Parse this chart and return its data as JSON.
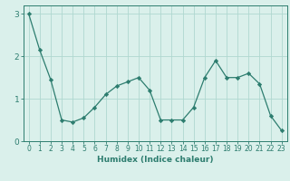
{
  "x": [
    0,
    1,
    2,
    3,
    4,
    5,
    6,
    7,
    8,
    9,
    10,
    11,
    12,
    13,
    14,
    15,
    16,
    17,
    18,
    19,
    20,
    21,
    22,
    23
  ],
  "y": [
    3.0,
    2.15,
    1.45,
    0.5,
    0.45,
    0.55,
    0.8,
    1.1,
    1.3,
    1.4,
    1.5,
    1.2,
    0.5,
    0.5,
    0.5,
    0.8,
    1.5,
    1.9,
    1.5,
    1.5,
    1.6,
    1.35,
    0.6,
    0.25
  ],
  "line_color": "#2d7d6f",
  "marker": "D",
  "marker_size": 2.2,
  "bg_color": "#daf0eb",
  "grid_color": "#b0d8d0",
  "xlabel": "Humidex (Indice chaleur)",
  "xlim": [
    -0.5,
    23.5
  ],
  "ylim": [
    0,
    3.2
  ],
  "yticks": [
    0,
    1,
    2,
    3
  ],
  "xticks": [
    0,
    1,
    2,
    3,
    4,
    5,
    6,
    7,
    8,
    9,
    10,
    11,
    12,
    13,
    14,
    15,
    16,
    17,
    18,
    19,
    20,
    21,
    22,
    23
  ],
  "axis_color": "#2d7d6f",
  "tick_color": "#2d7d6f",
  "label_fontsize": 6.5,
  "tick_fontsize": 5.5
}
